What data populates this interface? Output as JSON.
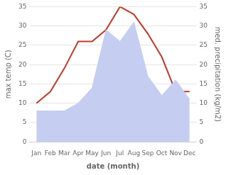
{
  "chart_data": {
    "type": "line",
    "xlabel": "date (month)",
    "ylabel": "max temp (C)",
    "y2label": "med. precipitation (kg/m2)",
    "categories": [
      "Jan",
      "Feb",
      "Mar",
      "Apr",
      "May",
      "Jun",
      "Jul",
      "Aug",
      "Sep",
      "Oct",
      "Nov",
      "Dec"
    ],
    "series": [
      {
        "type": "area",
        "color": "#c5cdf0",
        "axis": "y2",
        "values": [
          8,
          8,
          8,
          10,
          14,
          29,
          26,
          31,
          17,
          12,
          16,
          11
        ]
      },
      {
        "type": "line",
        "color": "#c0392b",
        "values": [
          10,
          13,
          19,
          26,
          26,
          29,
          35,
          33,
          28,
          22,
          13,
          13
        ]
      }
    ],
    "ylim": [
      0,
      35
    ],
    "yticks": [
      0,
      5,
      10,
      15,
      20,
      25,
      30,
      35
    ],
    "y2lim": [
      0,
      35
    ],
    "y2ticks": [
      0,
      5,
      10,
      15,
      20,
      25,
      30,
      35
    ],
    "grid": true
  }
}
